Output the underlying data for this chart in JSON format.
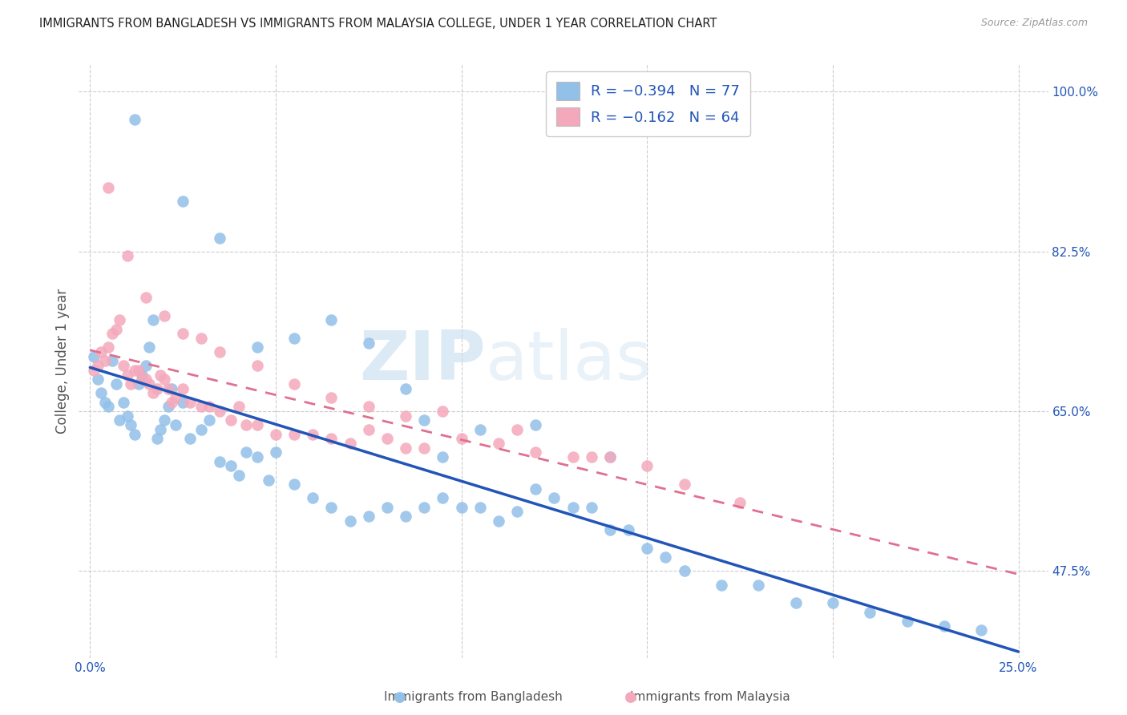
{
  "title": "IMMIGRANTS FROM BANGLADESH VS IMMIGRANTS FROM MALAYSIA COLLEGE, UNDER 1 YEAR CORRELATION CHART",
  "source": "Source: ZipAtlas.com",
  "ylabel": "College, Under 1 year",
  "x_min": 0.0,
  "x_max": 0.25,
  "y_min": 0.38,
  "y_max": 1.03,
  "right_yticks": [
    0.475,
    0.65,
    0.825,
    1.0
  ],
  "right_yticklabels": [
    "47.5%",
    "65.0%",
    "82.5%",
    "100.0%"
  ],
  "x_gridlines": [
    0.0,
    0.05,
    0.1,
    0.15,
    0.2,
    0.25
  ],
  "legend_blue_r": "-0.394",
  "legend_blue_n": "77",
  "legend_pink_r": "-0.162",
  "legend_pink_n": "64",
  "blue_color": "#92c0e8",
  "pink_color": "#f4a8bb",
  "blue_line_color": "#2255b8",
  "pink_line_color": "#e07090",
  "watermark_zip": "ZIP",
  "watermark_atlas": "atlas",
  "blue_x": [
    0.001,
    0.002,
    0.003,
    0.004,
    0.005,
    0.006,
    0.007,
    0.008,
    0.009,
    0.01,
    0.011,
    0.012,
    0.013,
    0.014,
    0.015,
    0.016,
    0.017,
    0.018,
    0.019,
    0.02,
    0.021,
    0.022,
    0.023,
    0.025,
    0.027,
    0.03,
    0.032,
    0.035,
    0.038,
    0.04,
    0.042,
    0.045,
    0.048,
    0.05,
    0.055,
    0.06,
    0.065,
    0.07,
    0.075,
    0.08,
    0.085,
    0.09,
    0.095,
    0.1,
    0.105,
    0.11,
    0.115,
    0.12,
    0.125,
    0.13,
    0.135,
    0.14,
    0.145,
    0.15,
    0.155,
    0.16,
    0.17,
    0.18,
    0.19,
    0.2,
    0.21,
    0.22,
    0.23,
    0.24,
    0.012,
    0.025,
    0.035,
    0.045,
    0.055,
    0.065,
    0.075,
    0.085,
    0.09,
    0.095,
    0.105,
    0.12,
    0.14
  ],
  "blue_y": [
    0.71,
    0.685,
    0.67,
    0.66,
    0.655,
    0.705,
    0.68,
    0.64,
    0.66,
    0.645,
    0.635,
    0.625,
    0.68,
    0.69,
    0.7,
    0.72,
    0.75,
    0.62,
    0.63,
    0.64,
    0.655,
    0.675,
    0.635,
    0.66,
    0.62,
    0.63,
    0.64,
    0.595,
    0.59,
    0.58,
    0.605,
    0.6,
    0.575,
    0.605,
    0.57,
    0.555,
    0.545,
    0.53,
    0.535,
    0.545,
    0.535,
    0.545,
    0.555,
    0.545,
    0.545,
    0.53,
    0.54,
    0.565,
    0.555,
    0.545,
    0.545,
    0.52,
    0.52,
    0.5,
    0.49,
    0.475,
    0.46,
    0.46,
    0.44,
    0.44,
    0.43,
    0.42,
    0.415,
    0.41,
    0.97,
    0.88,
    0.84,
    0.72,
    0.73,
    0.75,
    0.725,
    0.675,
    0.64,
    0.6,
    0.63,
    0.635,
    0.6
  ],
  "pink_x": [
    0.001,
    0.002,
    0.003,
    0.004,
    0.005,
    0.006,
    0.007,
    0.008,
    0.009,
    0.01,
    0.011,
    0.012,
    0.013,
    0.014,
    0.015,
    0.016,
    0.017,
    0.018,
    0.019,
    0.02,
    0.021,
    0.022,
    0.023,
    0.025,
    0.027,
    0.03,
    0.032,
    0.035,
    0.038,
    0.04,
    0.042,
    0.045,
    0.05,
    0.055,
    0.06,
    0.065,
    0.07,
    0.075,
    0.08,
    0.085,
    0.09,
    0.1,
    0.11,
    0.12,
    0.13,
    0.14,
    0.15,
    0.16,
    0.175,
    0.005,
    0.01,
    0.015,
    0.02,
    0.025,
    0.03,
    0.035,
    0.045,
    0.055,
    0.065,
    0.075,
    0.085,
    0.095,
    0.115,
    0.135
  ],
  "pink_y": [
    0.695,
    0.7,
    0.715,
    0.705,
    0.72,
    0.735,
    0.74,
    0.75,
    0.7,
    0.69,
    0.68,
    0.695,
    0.695,
    0.685,
    0.685,
    0.68,
    0.67,
    0.675,
    0.69,
    0.685,
    0.675,
    0.66,
    0.665,
    0.675,
    0.66,
    0.655,
    0.655,
    0.65,
    0.64,
    0.655,
    0.635,
    0.635,
    0.625,
    0.625,
    0.625,
    0.62,
    0.615,
    0.63,
    0.62,
    0.61,
    0.61,
    0.62,
    0.615,
    0.605,
    0.6,
    0.6,
    0.59,
    0.57,
    0.55,
    0.895,
    0.82,
    0.775,
    0.755,
    0.735,
    0.73,
    0.715,
    0.7,
    0.68,
    0.665,
    0.655,
    0.645,
    0.65,
    0.63,
    0.6
  ]
}
